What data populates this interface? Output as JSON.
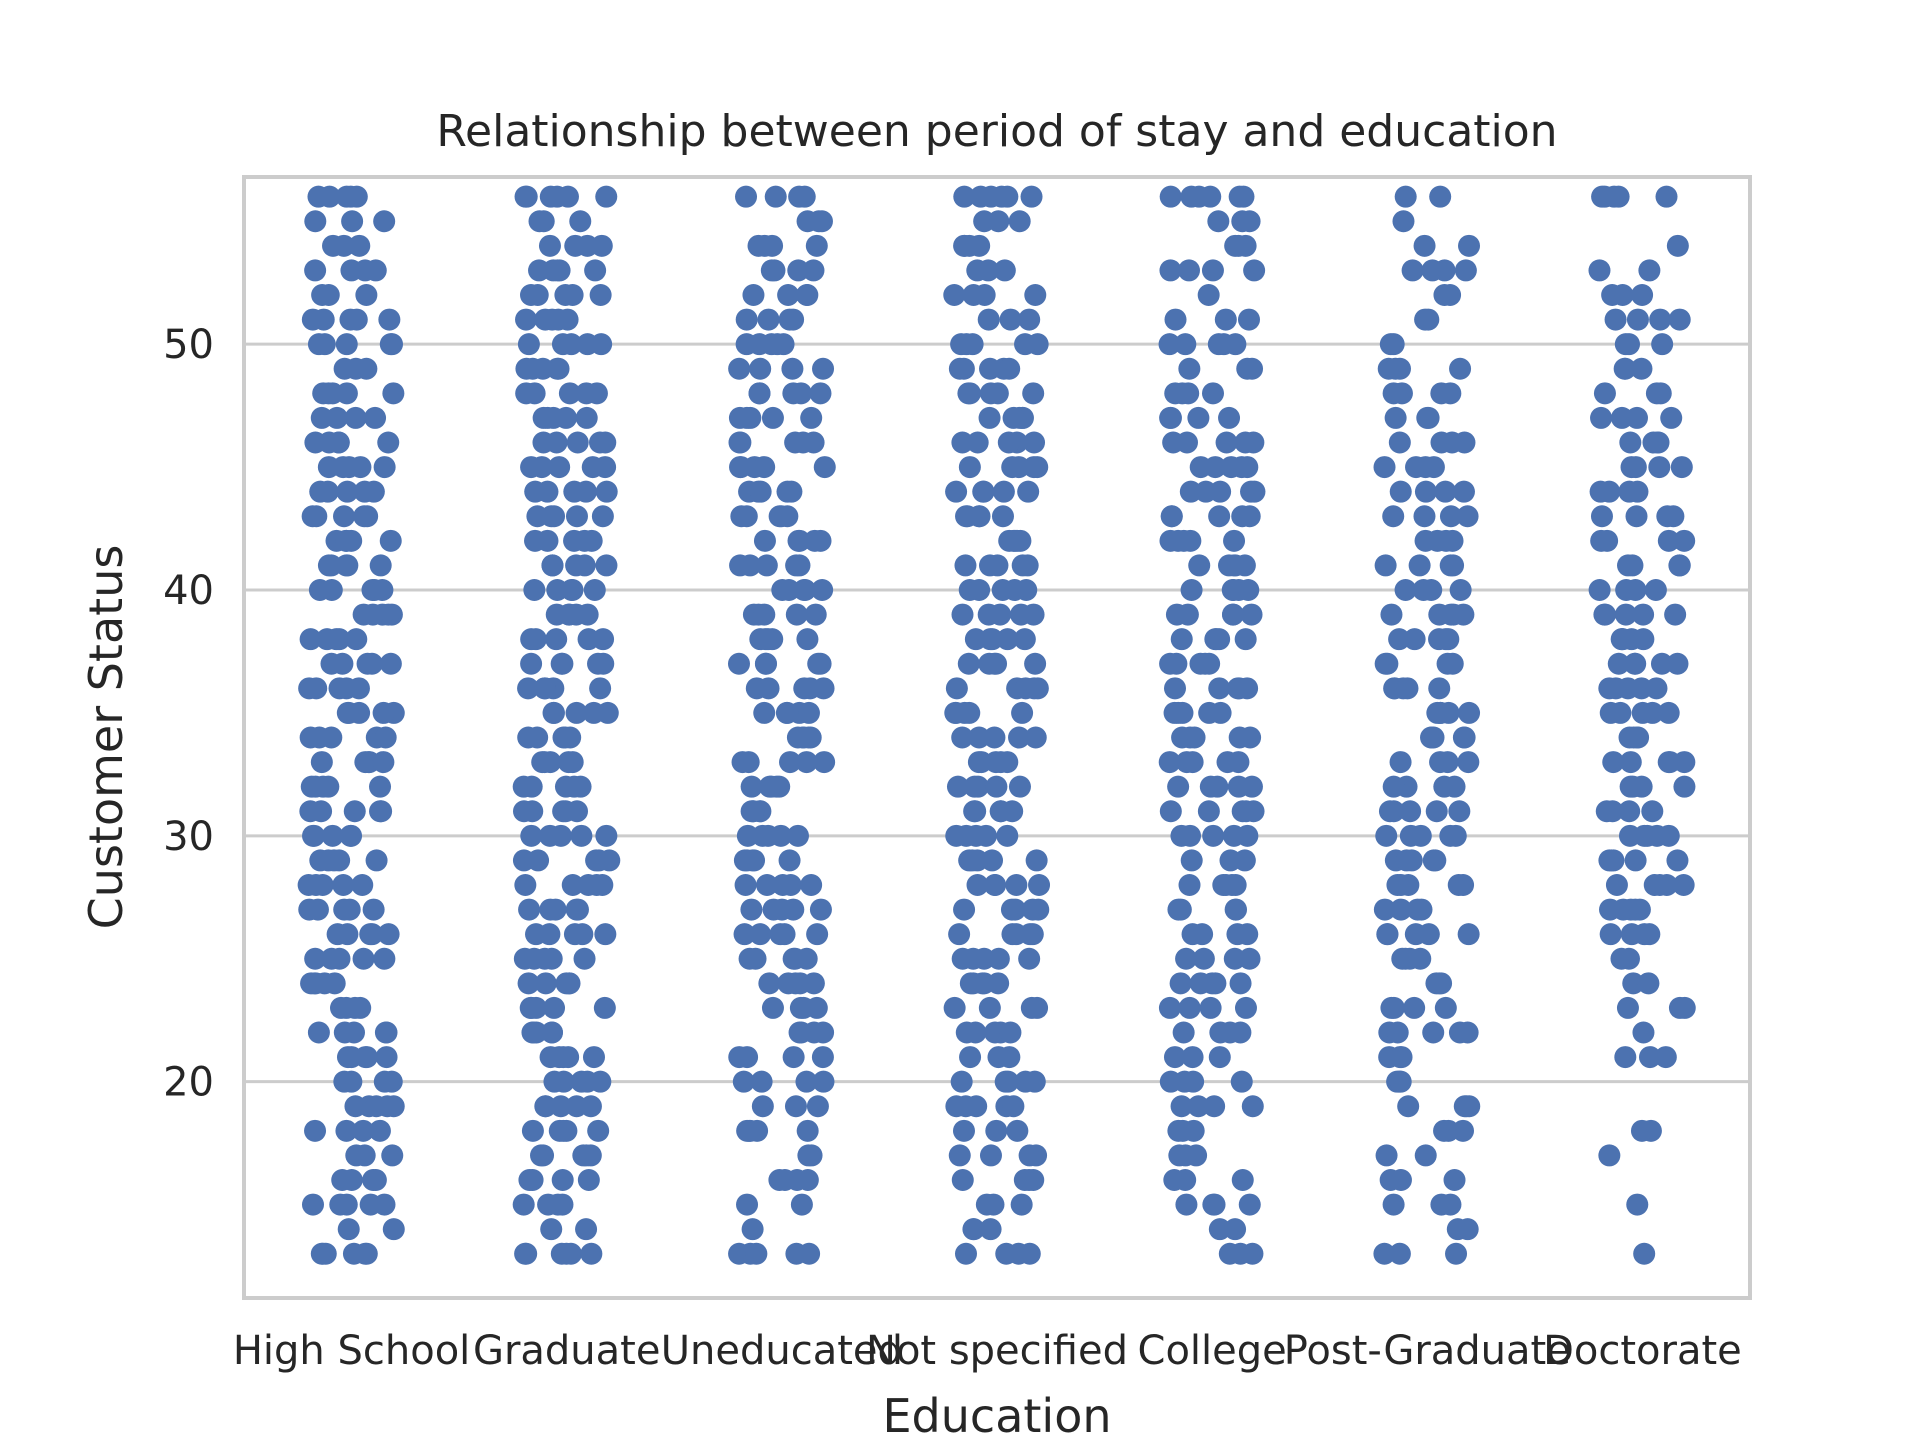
{
  "chart_data": {
    "type": "scatter",
    "subtype": "strip",
    "title": "Relationship between period of stay and education",
    "xlabel": "Education",
    "ylabel": "Customer Status",
    "categories": [
      "High School",
      "Graduate",
      "Uneducated",
      "Not specified",
      "College",
      "Post-Graduate",
      "Doctorate"
    ],
    "ylim": [
      11.2,
      56.8
    ],
    "yticks": [
      20,
      30,
      40,
      50
    ],
    "grid": "y",
    "marker_color": "#4c72b0",
    "series": [
      {
        "category": "High School",
        "values": [
          56,
          56,
          56,
          56,
          56,
          55,
          55,
          55,
          54,
          54,
          54,
          53,
          53,
          53,
          53,
          52,
          52,
          52,
          51,
          51,
          51,
          51,
          51,
          50,
          50,
          50,
          50,
          50,
          49,
          49,
          49,
          48,
          48,
          48,
          48,
          48,
          47,
          47,
          47,
          47,
          46,
          46,
          46,
          46,
          46,
          45,
          45,
          45,
          45,
          45,
          44,
          44,
          44,
          44,
          44,
          43,
          43,
          43,
          43,
          43,
          42,
          42,
          42,
          42,
          42,
          41,
          41,
          41,
          41,
          41,
          40,
          40,
          40,
          40,
          40,
          39,
          39,
          39,
          39,
          39,
          38,
          38,
          38,
          38,
          38,
          37,
          37,
          37,
          37,
          37,
          36,
          36,
          36,
          36,
          36,
          35,
          35,
          35,
          35,
          35,
          34,
          34,
          34,
          34,
          34,
          33,
          33,
          33,
          33,
          33,
          32,
          32,
          32,
          32,
          32,
          31,
          31,
          31,
          31,
          31,
          30,
          30,
          30,
          30,
          30,
          29,
          29,
          29,
          29,
          29,
          28,
          28,
          28,
          28,
          28,
          27,
          27,
          27,
          27,
          27,
          26,
          26,
          26,
          26,
          26,
          25,
          25,
          25,
          25,
          25,
          24,
          24,
          24,
          24,
          24,
          23,
          23,
          23,
          23,
          22,
          22,
          22,
          22,
          22,
          21,
          21,
          21,
          21,
          21,
          20,
          20,
          20,
          20,
          19,
          19,
          19,
          19,
          19,
          18,
          18,
          18,
          18,
          17,
          17,
          17,
          16,
          16,
          16,
          16,
          15,
          15,
          15,
          15,
          15,
          14,
          14,
          13,
          13,
          13,
          13,
          13,
          13
        ]
      },
      {
        "category": "Graduate",
        "values": [
          56,
          56,
          56,
          56,
          56,
          56,
          55,
          55,
          55,
          54,
          54,
          54,
          54,
          53,
          53,
          53,
          53,
          53,
          52,
          52,
          52,
          52,
          52,
          51,
          51,
          51,
          51,
          51,
          50,
          50,
          50,
          50,
          50,
          49,
          49,
          49,
          49,
          49,
          48,
          48,
          48,
          48,
          48,
          47,
          47,
          47,
          47,
          47,
          46,
          46,
          46,
          46,
          46,
          45,
          45,
          45,
          45,
          45,
          44,
          44,
          44,
          44,
          44,
          43,
          43,
          43,
          43,
          43,
          42,
          42,
          42,
          42,
          42,
          41,
          41,
          41,
          41,
          41,
          40,
          40,
          40,
          40,
          40,
          39,
          39,
          39,
          39,
          39,
          38,
          38,
          38,
          38,
          38,
          37,
          37,
          37,
          37,
          37,
          36,
          36,
          36,
          36,
          36,
          35,
          35,
          35,
          35,
          35,
          34,
          34,
          34,
          34,
          34,
          33,
          33,
          33,
          33,
          33,
          32,
          32,
          32,
          32,
          32,
          31,
          31,
          31,
          31,
          31,
          30,
          30,
          30,
          30,
          30,
          29,
          29,
          29,
          29,
          29,
          28,
          28,
          28,
          28,
          28,
          27,
          27,
          27,
          27,
          27,
          26,
          26,
          26,
          26,
          26,
          25,
          25,
          25,
          25,
          25,
          24,
          24,
          24,
          24,
          24,
          23,
          23,
          23,
          23,
          23,
          22,
          22,
          22,
          22,
          22,
          21,
          21,
          21,
          21,
          21,
          20,
          20,
          20,
          20,
          20,
          19,
          19,
          19,
          19,
          19,
          18,
          18,
          18,
          18,
          18,
          17,
          17,
          17,
          17,
          17,
          16,
          16,
          16,
          16,
          15,
          15,
          15,
          15,
          14,
          14,
          13,
          13,
          13,
          13,
          13,
          13
        ]
      },
      {
        "category": "Uneducated",
        "values": [
          56,
          56,
          56,
          56,
          55,
          55,
          55,
          54,
          54,
          54,
          54,
          53,
          53,
          53,
          53,
          52,
          52,
          52,
          52,
          51,
          51,
          51,
          51,
          50,
          50,
          50,
          50,
          50,
          49,
          49,
          49,
          49,
          48,
          48,
          48,
          48,
          48,
          47,
          47,
          47,
          47,
          47,
          46,
          46,
          46,
          46,
          46,
          45,
          45,
          45,
          45,
          45,
          44,
          44,
          44,
          44,
          44,
          43,
          43,
          43,
          43,
          43,
          42,
          42,
          42,
          42,
          42,
          41,
          41,
          41,
          41,
          41,
          40,
          40,
          40,
          40,
          40,
          39,
          39,
          39,
          39,
          39,
          38,
          38,
          38,
          38,
          38,
          37,
          37,
          37,
          37,
          37,
          36,
          36,
          36,
          36,
          36,
          35,
          35,
          35,
          35,
          35,
          34,
          34,
          34,
          34,
          34,
          33,
          33,
          33,
          33,
          33,
          32,
          32,
          32,
          32,
          32,
          31,
          31,
          31,
          31,
          31,
          30,
          30,
          30,
          30,
          30,
          29,
          29,
          29,
          29,
          29,
          28,
          28,
          28,
          28,
          28,
          27,
          27,
          27,
          27,
          27,
          26,
          26,
          26,
          26,
          26,
          25,
          25,
          25,
          25,
          25,
          24,
          24,
          24,
          24,
          24,
          23,
          23,
          23,
          23,
          22,
          22,
          22,
          22,
          21,
          21,
          21,
          21,
          20,
          20,
          20,
          20,
          19,
          19,
          19,
          18,
          18,
          18,
          18,
          18,
          17,
          17,
          16,
          16,
          16,
          16,
          15,
          15,
          14,
          13,
          13,
          13,
          13,
          13
        ]
      },
      {
        "category": "Not specified",
        "values": [
          56,
          56,
          56,
          56,
          56,
          56,
          55,
          55,
          55,
          54,
          54,
          54,
          54,
          53,
          53,
          53,
          52,
          52,
          52,
          52,
          51,
          51,
          51,
          50,
          50,
          50,
          50,
          50,
          49,
          49,
          49,
          49,
          49,
          48,
          48,
          48,
          48,
          48,
          47,
          47,
          47,
          47,
          47,
          46,
          46,
          46,
          46,
          46,
          45,
          45,
          45,
          45,
          45,
          44,
          44,
          44,
          44,
          44,
          43,
          43,
          43,
          43,
          43,
          42,
          42,
          42,
          42,
          42,
          41,
          41,
          41,
          41,
          41,
          40,
          40,
          40,
          40,
          40,
          39,
          39,
          39,
          39,
          39,
          38,
          38,
          38,
          38,
          38,
          37,
          37,
          37,
          37,
          37,
          36,
          36,
          36,
          36,
          36,
          35,
          35,
          35,
          35,
          35,
          34,
          34,
          34,
          34,
          34,
          33,
          33,
          33,
          33,
          33,
          32,
          32,
          32,
          32,
          32,
          31,
          31,
          31,
          31,
          31,
          30,
          30,
          30,
          30,
          30,
          29,
          29,
          29,
          29,
          29,
          28,
          28,
          28,
          28,
          28,
          27,
          27,
          27,
          27,
          27,
          26,
          26,
          26,
          26,
          26,
          25,
          25,
          25,
          25,
          25,
          24,
          24,
          24,
          24,
          24,
          23,
          23,
          23,
          23,
          22,
          22,
          22,
          22,
          22,
          21,
          21,
          21,
          20,
          20,
          20,
          20,
          20,
          19,
          19,
          19,
          19,
          19,
          18,
          18,
          18,
          17,
          17,
          17,
          17,
          16,
          16,
          16,
          16,
          15,
          15,
          15,
          14,
          14,
          14,
          13,
          13,
          13,
          13
        ]
      },
      {
        "category": "College",
        "values": [
          56,
          56,
          56,
          56,
          56,
          56,
          55,
          55,
          55,
          54,
          54,
          54,
          53,
          53,
          53,
          53,
          52,
          51,
          51,
          51,
          50,
          50,
          50,
          50,
          50,
          49,
          49,
          49,
          48,
          48,
          48,
          48,
          47,
          47,
          47,
          47,
          46,
          46,
          46,
          46,
          46,
          45,
          45,
          45,
          45,
          45,
          44,
          44,
          44,
          44,
          44,
          43,
          43,
          43,
          43,
          43,
          42,
          42,
          42,
          42,
          42,
          41,
          41,
          41,
          41,
          41,
          40,
          40,
          40,
          40,
          40,
          39,
          39,
          39,
          39,
          39,
          38,
          38,
          38,
          38,
          38,
          37,
          37,
          37,
          37,
          37,
          36,
          36,
          36,
          36,
          36,
          35,
          35,
          35,
          35,
          35,
          34,
          34,
          34,
          34,
          34,
          33,
          33,
          33,
          33,
          33,
          32,
          32,
          32,
          32,
          32,
          31,
          31,
          31,
          31,
          31,
          30,
          30,
          30,
          30,
          30,
          29,
          29,
          29,
          28,
          28,
          28,
          28,
          28,
          27,
          27,
          27,
          27,
          26,
          26,
          26,
          26,
          25,
          25,
          25,
          25,
          24,
          24,
          24,
          24,
          24,
          23,
          23,
          23,
          23,
          22,
          22,
          22,
          22,
          21,
          21,
          21,
          20,
          20,
          20,
          20,
          19,
          19,
          19,
          19,
          18,
          18,
          18,
          17,
          17,
          17,
          16,
          16,
          16,
          15,
          15,
          15,
          15,
          14,
          14,
          13,
          13,
          13
        ]
      },
      {
        "category": "Post-Graduate",
        "values": [
          56,
          56,
          55,
          54,
          54,
          53,
          53,
          53,
          53,
          52,
          52,
          51,
          51,
          50,
          50,
          49,
          49,
          49,
          49,
          48,
          48,
          48,
          48,
          47,
          47,
          47,
          46,
          46,
          46,
          46,
          45,
          45,
          45,
          45,
          44,
          44,
          44,
          44,
          43,
          43,
          43,
          43,
          42,
          42,
          42,
          42,
          41,
          41,
          41,
          41,
          40,
          40,
          40,
          40,
          39,
          39,
          39,
          39,
          39,
          38,
          38,
          38,
          38,
          38,
          37,
          37,
          37,
          37,
          36,
          36,
          36,
          36,
          36,
          35,
          35,
          35,
          35,
          35,
          34,
          34,
          34,
          34,
          34,
          33,
          33,
          33,
          33,
          32,
          32,
          32,
          32,
          31,
          31,
          31,
          31,
          31,
          30,
          30,
          30,
          30,
          30,
          29,
          29,
          29,
          29,
          29,
          28,
          28,
          28,
          28,
          28,
          27,
          27,
          27,
          27,
          26,
          26,
          26,
          26,
          26,
          25,
          25,
          25,
          25,
          24,
          24,
          24,
          23,
          23,
          23,
          23,
          22,
          22,
          22,
          22,
          22,
          21,
          21,
          21,
          20,
          20,
          20,
          19,
          19,
          19,
          19,
          18,
          18,
          18,
          17,
          17,
          16,
          16,
          16,
          15,
          15,
          15,
          14,
          14,
          13,
          13,
          13
        ]
      },
      {
        "category": "Doctorate",
        "values": [
          56,
          56,
          56,
          56,
          56,
          54,
          53,
          53,
          52,
          52,
          52,
          51,
          51,
          51,
          51,
          50,
          50,
          50,
          49,
          49,
          49,
          48,
          48,
          48,
          47,
          47,
          47,
          47,
          46,
          46,
          46,
          46,
          45,
          45,
          45,
          45,
          44,
          44,
          44,
          44,
          43,
          43,
          43,
          43,
          42,
          42,
          42,
          42,
          41,
          41,
          41,
          41,
          40,
          40,
          40,
          40,
          39,
          39,
          39,
          39,
          39,
          38,
          38,
          38,
          38,
          38,
          37,
          37,
          37,
          37,
          37,
          36,
          36,
          36,
          36,
          36,
          35,
          35,
          35,
          35,
          35,
          34,
          34,
          34,
          34,
          33,
          33,
          33,
          33,
          33,
          32,
          32,
          32,
          32,
          31,
          31,
          31,
          31,
          30,
          30,
          30,
          30,
          30,
          29,
          29,
          29,
          29,
          29,
          28,
          28,
          28,
          28,
          28,
          27,
          27,
          27,
          27,
          27,
          26,
          26,
          26,
          26,
          25,
          25,
          24,
          24,
          23,
          23,
          23,
          22,
          21,
          21,
          21,
          18,
          18,
          17,
          15,
          13
        ]
      }
    ]
  }
}
